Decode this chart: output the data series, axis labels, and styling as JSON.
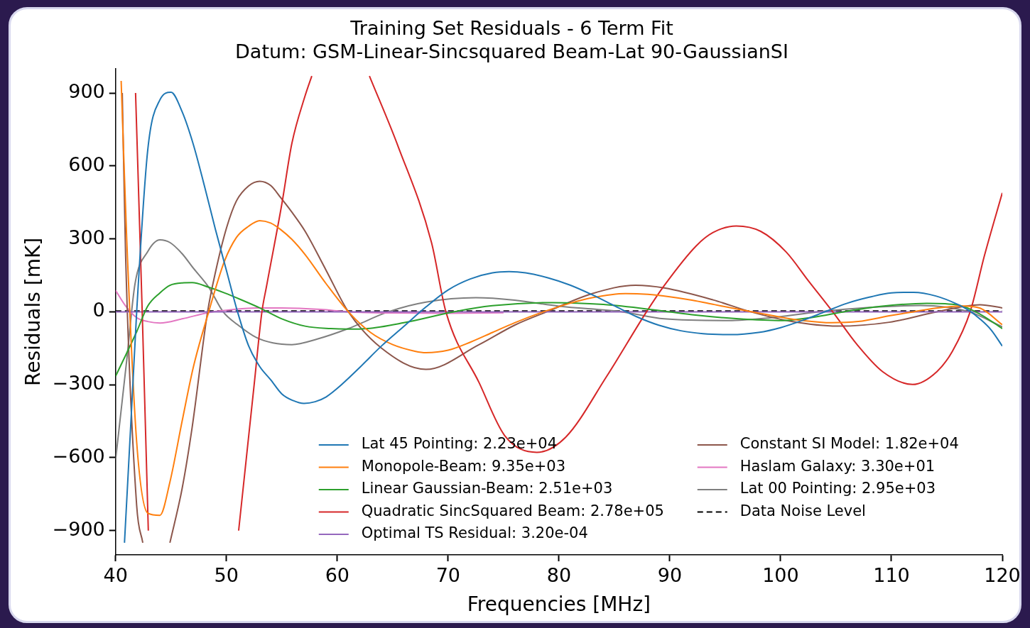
{
  "chart_data": {
    "type": "line",
    "title": "Training Set Residuals - 6 Term Fit",
    "subtitle": "Datum: GSM-Linear-Sincsquared Beam-Lat 90-GaussianSI",
    "xlabel": "Frequencies [MHz]",
    "ylabel": "Residuals [mK]",
    "xlim": [
      40,
      120
    ],
    "xticks": [
      40,
      50,
      60,
      70,
      80,
      90,
      100,
      110,
      120
    ],
    "ylim": [
      -1000,
      1000
    ],
    "yticks": [
      {
        "value": -900,
        "label": "−900"
      },
      {
        "value": -600,
        "label": "−600"
      },
      {
        "value": -300,
        "label": "−300"
      },
      0,
      300,
      600,
      900
    ],
    "grid": false,
    "legend": "bottom",
    "marker": "none",
    "series": [
      {
        "name": "Lat 45 Pointing: 2.23e+04",
        "color": "#1f77b4",
        "x": [
          40.8,
          41.5,
          41.9,
          42.9,
          44,
          45,
          46,
          47,
          48,
          49,
          50,
          51,
          52,
          53,
          54,
          55,
          56,
          57,
          58,
          59,
          60,
          62,
          64,
          66,
          68,
          70,
          72,
          74,
          75.5,
          77,
          79,
          81,
          83,
          85,
          87,
          89,
          91,
          93,
          95.5,
          98,
          100,
          102,
          104,
          106,
          108,
          110,
          112,
          114,
          116,
          117,
          118,
          119,
          120
        ],
        "values": [
          -950,
          -350,
          0,
          666,
          872,
          903,
          823,
          690,
          520,
          340,
          170,
          0,
          -140,
          -225,
          -280,
          -338,
          -365,
          -377,
          -370,
          -350,
          -315,
          -230,
          -140,
          -60,
          20,
          90,
          135,
          160,
          165,
          160,
          140,
          110,
          70,
          25,
          -20,
          -55,
          -78,
          -90,
          -94,
          -85,
          -65,
          -35,
          0,
          35,
          60,
          78,
          80,
          65,
          30,
          5,
          -30,
          -75,
          -141
        ]
      },
      {
        "name": "Monopole-Beam: 9.35e+03",
        "color": "#ff7f0e",
        "x": [
          40.5,
          41,
          41.9,
          42.9,
          44,
          44.9,
          46,
          47,
          48.4,
          49.8,
          50.9,
          52,
          53,
          54,
          54.9,
          55.9,
          57.1,
          59,
          61,
          63,
          65,
          67,
          68,
          70,
          72,
          74,
          76,
          78.6,
          81,
          83,
          86,
          88,
          90,
          92,
          94,
          96,
          98,
          100,
          102,
          104.6,
          107,
          110,
          112,
          114,
          116.4,
          118,
          120
        ],
        "values": [
          950,
          300,
          -536,
          -828,
          -837,
          -700,
          -450,
          -230,
          0,
          206,
          306,
          352,
          375,
          365,
          338,
          298,
          235,
          115,
          0,
          -85,
          -135,
          -162,
          -168,
          -158,
          -125,
          -85,
          -45,
          0,
          35,
          58,
          75,
          72,
          62,
          48,
          30,
          12,
          -5,
          -22,
          -36,
          -45,
          -40,
          -15,
          0,
          15,
          24,
          15,
          -53
        ]
      },
      {
        "name": "Linear Gaussian-Beam: 2.51e+03",
        "color": "#2ca02c",
        "x": [
          40,
          41.9,
          42.9,
          44,
          44.9,
          46,
          46.9,
          48.4,
          49.8,
          51.3,
          53,
          55,
          57.1,
          59.4,
          61,
          62.7,
          66,
          70.5,
          74,
          79.4,
          84,
          88.6,
          92,
          96,
          100.2,
          103,
          105.7,
          109,
          113.2,
          116,
          118,
          120
        ],
        "values": [
          -265,
          -82,
          24,
          78,
          109,
          119,
          120,
          101,
          78,
          50,
          16,
          -29,
          -59,
          -69,
          -71,
          -69,
          -45,
          0,
          25,
          38,
          30,
          8,
          -12,
          -28,
          -36,
          -22,
          0,
          22,
          35,
          28,
          -10,
          -69
        ]
      },
      {
        "name": "Quadratic SincSquared Beam: 2.78e+05",
        "color": "#d62728",
        "x": [
          41.8,
          42.4,
          42.95,
          47,
          51.1,
          52.5,
          53.2,
          53.6,
          55,
          55.9,
          57.1,
          57.7,
          60,
          62.9,
          65.5,
          68.5,
          69.8,
          72.8,
          75.1,
          78,
          80.6,
          84.3,
          87.9,
          89.5,
          92.4,
          93.9,
          96,
          98.2,
          100.5,
          102.5,
          104.7,
          106.9,
          109.2,
          111.9,
          114.1,
          115.5,
          117.1,
          118.4,
          120
        ],
        "values": [
          900,
          0,
          -900,
          null,
          -900,
          -300,
          0,
          101,
          444,
          692,
          889,
          970,
          null,
          970,
          679,
          285,
          0,
          -292,
          -509,
          -578,
          -516,
          -266,
          0,
          108,
          272,
          326,
          353,
          331,
          246,
          128,
          0,
          -135,
          -246,
          -299,
          -246,
          -162,
          0,
          233,
          489
        ]
      },
      {
        "name": "Optimal TS Residual: 3.20e-04",
        "color": "#9467bd",
        "x": [
          40,
          120
        ],
        "values": [
          0,
          0
        ]
      },
      {
        "name": "Constant SI Model: 1.82e+04",
        "color": "#8c564b",
        "x": [
          40.6,
          40.9,
          41.9,
          42.45,
          43.6,
          44.9,
          46,
          46.9,
          48.3,
          49,
          50,
          50.9,
          52,
          53,
          54,
          54.9,
          55.9,
          57.1,
          59,
          61,
          64,
          68,
          72.8,
          76,
          78.9,
          83,
          86.9,
          89.5,
          93.9,
          97.3,
          101,
          105.1,
          109.8,
          114.1,
          118,
          120
        ],
        "values": [
          900,
          233,
          -797,
          -950,
          null,
          -950,
          -727,
          -477,
          0,
          161,
          344,
          456,
          518,
          537,
          519,
          469,
          410,
          331,
          170,
          0,
          -150,
          -237,
          -135,
          -55,
          0,
          75,
          109,
          98,
          49,
          0,
          -40,
          -59,
          -43,
          0,
          29,
          16
        ]
      },
      {
        "name": "Haslam Galaxy: 3.30e+01",
        "color": "#e377c2",
        "x": [
          40,
          40.9,
          41.9,
          42.9,
          44,
          46,
          48.4,
          50.7,
          52.7,
          55,
          58.5,
          61,
          65,
          70,
          75
        ],
        "values": [
          88,
          24,
          -24,
          -40,
          -46,
          -29,
          -3,
          10,
          16,
          16,
          10,
          0,
          -5,
          -6,
          -4
        ]
      },
      {
        "name": "Lat 00 Pointing: 2.95e+03",
        "color": "#7f7f7f",
        "x": [
          40,
          41,
          41.75,
          42.9,
          44,
          44.9,
          46,
          47,
          48.4,
          49.7,
          51,
          52.7,
          54.2,
          55.9,
          58.2,
          61,
          64.6,
          68,
          72.5,
          76,
          80,
          85.7,
          89.5,
          95.3,
          99,
          103.4,
          108,
          112.6,
          117,
          120
        ],
        "values": [
          -608,
          -200,
          115,
          248,
          296,
          285,
          239,
          180,
          101,
          0,
          -53,
          -106,
          -128,
          -135,
          -112,
          -69,
          0,
          40,
          58,
          48,
          23,
          0,
          -29,
          -36,
          -25,
          0,
          18,
          26,
          0,
          -62
        ]
      },
      {
        "name": "Data Noise Level",
        "color": "#000000",
        "line_style": "dashed",
        "x": [
          40,
          120
        ],
        "values": [
          3,
          3
        ]
      }
    ]
  }
}
